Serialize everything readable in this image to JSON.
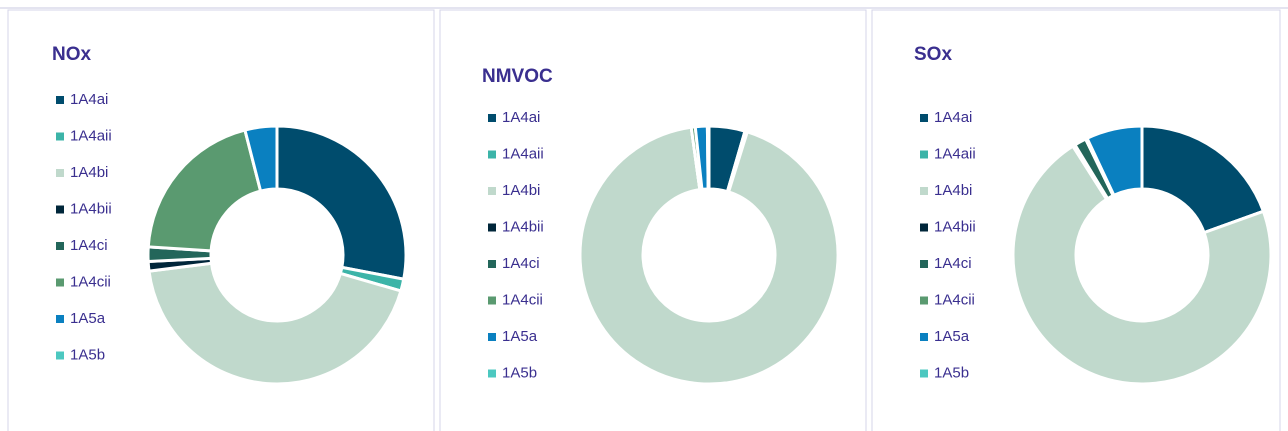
{
  "charts": [
    {
      "chart_data": {
        "type": "pie",
        "title": "NOx",
        "categories": [
          "1A4ai",
          "1A4aii",
          "1A4bi",
          "1A4bii",
          "1A4ci",
          "1A4cii",
          "1A5a",
          "1A5b"
        ],
        "values": [
          28,
          1.5,
          43.5,
          1.2,
          1.8,
          20,
          4,
          0
        ],
        "colors": [
          "#004c6d",
          "#3cb4a8",
          "#c0d9cc",
          "#00263a",
          "#23665a",
          "#5a9a70",
          "#0a80c0",
          "#4cc8c0"
        ]
      }
    },
    {
      "chart_data": {
        "type": "pie",
        "title": "NMVOC",
        "categories": [
          "1A4ai",
          "1A4aii",
          "1A4bi",
          "1A4bii",
          "1A4ci",
          "1A4cii",
          "1A5a",
          "1A5b"
        ],
        "values": [
          4.5,
          0.3,
          93,
          0,
          0,
          0.5,
          1.5,
          0.2
        ],
        "colors": [
          "#004c6d",
          "#3cb4a8",
          "#c0d9cc",
          "#00263a",
          "#23665a",
          "#5a9a70",
          "#0a80c0",
          "#4cc8c0"
        ]
      }
    },
    {
      "chart_data": {
        "type": "pie",
        "title": "SOx",
        "categories": [
          "1A4ai",
          "1A4aii",
          "1A4bi",
          "1A4bii",
          "1A4ci",
          "1A4cii",
          "1A5a",
          "1A5b"
        ],
        "values": [
          19.5,
          0,
          71.5,
          0.3,
          1.5,
          0.2,
          7,
          0
        ],
        "colors": [
          "#004c6d",
          "#3cb4a8",
          "#c0d9cc",
          "#00263a",
          "#23665a",
          "#5a9a70",
          "#0a80c0",
          "#4cc8c0"
        ]
      }
    }
  ]
}
